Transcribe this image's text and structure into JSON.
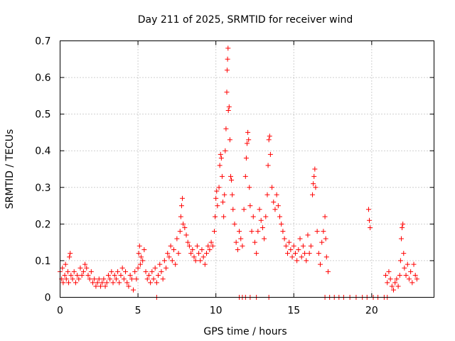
{
  "chart_data": {
    "type": "scatter",
    "title": "Day 211 of 2025, SRMTID for receiver wind",
    "xlabel": "GPS time / hours",
    "ylabel": "SRMTID / TECUs",
    "xlim": [
      0,
      24
    ],
    "ylim": [
      0,
      0.7
    ],
    "xticks": [
      "0",
      "5",
      "10",
      "15",
      "20"
    ],
    "yticks": [
      "0",
      "0.1",
      "0.2",
      "0.3",
      "0.4",
      "0.5",
      "0.6",
      "0.7"
    ],
    "grid": true,
    "marker": "+",
    "color": "#ff0000",
    "series": [
      {
        "name": "SRMTID",
        "points": [
          [
            0.0,
            0.07
          ],
          [
            0.1,
            0.05
          ],
          [
            0.15,
            0.08
          ],
          [
            0.2,
            0.04
          ],
          [
            0.3,
            0.06
          ],
          [
            0.35,
            0.09
          ],
          [
            0.4,
            0.05
          ],
          [
            0.5,
            0.07
          ],
          [
            0.55,
            0.04
          ],
          [
            0.6,
            0.11
          ],
          [
            0.65,
            0.12
          ],
          [
            0.7,
            0.06
          ],
          [
            0.8,
            0.05
          ],
          [
            0.9,
            0.07
          ],
          [
            1.0,
            0.04
          ],
          [
            1.1,
            0.06
          ],
          [
            1.2,
            0.05
          ],
          [
            1.3,
            0.08
          ],
          [
            1.4,
            0.06
          ],
          [
            1.5,
            0.07
          ],
          [
            1.6,
            0.09
          ],
          [
            1.7,
            0.08
          ],
          [
            1.8,
            0.06
          ],
          [
            1.9,
            0.05
          ],
          [
            2.0,
            0.07
          ],
          [
            2.1,
            0.04
          ],
          [
            2.2,
            0.05
          ],
          [
            2.3,
            0.03
          ],
          [
            2.4,
            0.04
          ],
          [
            2.5,
            0.05
          ],
          [
            2.6,
            0.03
          ],
          [
            2.7,
            0.04
          ],
          [
            2.8,
            0.05
          ],
          [
            2.9,
            0.03
          ],
          [
            3.0,
            0.04
          ],
          [
            3.1,
            0.06
          ],
          [
            3.2,
            0.05
          ],
          [
            3.3,
            0.07
          ],
          [
            3.4,
            0.04
          ],
          [
            3.5,
            0.06
          ],
          [
            3.6,
            0.05
          ],
          [
            3.7,
            0.07
          ],
          [
            3.8,
            0.04
          ],
          [
            3.9,
            0.06
          ],
          [
            4.0,
            0.08
          ],
          [
            4.1,
            0.05
          ],
          [
            4.2,
            0.07
          ],
          [
            4.3,
            0.04
          ],
          [
            4.4,
            0.03
          ],
          [
            4.5,
            0.06
          ],
          [
            4.6,
            0.05
          ],
          [
            4.7,
            0.02
          ],
          [
            4.8,
            0.07
          ],
          [
            4.9,
            0.05
          ],
          [
            5.0,
            0.08
          ],
          [
            5.05,
            0.12
          ],
          [
            5.1,
            0.14
          ],
          [
            5.15,
            0.09
          ],
          [
            5.2,
            0.11
          ],
          [
            5.3,
            0.1
          ],
          [
            5.4,
            0.13
          ],
          [
            5.5,
            0.07
          ],
          [
            5.6,
            0.05
          ],
          [
            5.7,
            0.06
          ],
          [
            5.8,
            0.04
          ],
          [
            5.9,
            0.07
          ],
          [
            6.0,
            0.05
          ],
          [
            6.1,
            0.08
          ],
          [
            6.2,
            0.04
          ],
          [
            6.3,
            0.06
          ],
          [
            6.4,
            0.09
          ],
          [
            6.5,
            0.07
          ],
          [
            6.6,
            0.05
          ],
          [
            6.7,
            0.1
          ],
          [
            6.8,
            0.08
          ],
          [
            6.9,
            0.12
          ],
          [
            7.0,
            0.11
          ],
          [
            7.1,
            0.14
          ],
          [
            7.2,
            0.1
          ],
          [
            7.3,
            0.13
          ],
          [
            7.4,
            0.09
          ],
          [
            7.5,
            0.16
          ],
          [
            7.6,
            0.12
          ],
          [
            7.7,
            0.18
          ],
          [
            7.75,
            0.22
          ],
          [
            7.8,
            0.25
          ],
          [
            7.85,
            0.27
          ],
          [
            7.9,
            0.2
          ],
          [
            8.0,
            0.19
          ],
          [
            8.1,
            0.17
          ],
          [
            8.2,
            0.15
          ],
          [
            8.3,
            0.14
          ],
          [
            8.4,
            0.12
          ],
          [
            8.5,
            0.13
          ],
          [
            8.6,
            0.11
          ],
          [
            8.7,
            0.1
          ],
          [
            8.8,
            0.14
          ],
          [
            8.9,
            0.12
          ],
          [
            9.0,
            0.1
          ],
          [
            9.1,
            0.13
          ],
          [
            9.2,
            0.11
          ],
          [
            9.3,
            0.09
          ],
          [
            9.4,
            0.12
          ],
          [
            9.5,
            0.14
          ],
          [
            9.6,
            0.13
          ],
          [
            9.7,
            0.15
          ],
          [
            9.8,
            0.14
          ],
          [
            9.9,
            0.18
          ],
          [
            9.95,
            0.22
          ],
          [
            10.0,
            0.27
          ],
          [
            10.05,
            0.29
          ],
          [
            10.1,
            0.25
          ],
          [
            10.2,
            0.3
          ],
          [
            10.25,
            0.36
          ],
          [
            10.3,
            0.39
          ],
          [
            10.35,
            0.38
          ],
          [
            10.4,
            0.33
          ],
          [
            10.45,
            0.26
          ],
          [
            10.5,
            0.22
          ],
          [
            10.55,
            0.28
          ],
          [
            10.6,
            0.4
          ],
          [
            10.65,
            0.46
          ],
          [
            10.7,
            0.56
          ],
          [
            10.72,
            0.62
          ],
          [
            10.75,
            0.65
          ],
          [
            10.78,
            0.68
          ],
          [
            10.8,
            0.51
          ],
          [
            10.85,
            0.52
          ],
          [
            10.9,
            0.43
          ],
          [
            10.95,
            0.33
          ],
          [
            11.0,
            0.32
          ],
          [
            11.05,
            0.28
          ],
          [
            11.1,
            0.24
          ],
          [
            11.2,
            0.2
          ],
          [
            11.3,
            0.15
          ],
          [
            11.4,
            0.13
          ],
          [
            11.5,
            0.18
          ],
          [
            11.6,
            0.16
          ],
          [
            11.7,
            0.14
          ],
          [
            11.8,
            0.24
          ],
          [
            11.9,
            0.33
          ],
          [
            11.95,
            0.38
          ],
          [
            12.0,
            0.42
          ],
          [
            12.05,
            0.45
          ],
          [
            12.1,
            0.43
          ],
          [
            12.15,
            0.3
          ],
          [
            12.2,
            0.25
          ],
          [
            12.3,
            0.18
          ],
          [
            12.4,
            0.22
          ],
          [
            12.5,
            0.15
          ],
          [
            12.6,
            0.12
          ],
          [
            12.7,
            0.18
          ],
          [
            12.8,
            0.24
          ],
          [
            12.9,
            0.21
          ],
          [
            13.0,
            0.19
          ],
          [
            13.1,
            0.16
          ],
          [
            13.2,
            0.22
          ],
          [
            13.3,
            0.28
          ],
          [
            13.35,
            0.36
          ],
          [
            13.4,
            0.43
          ],
          [
            13.45,
            0.44
          ],
          [
            13.5,
            0.39
          ],
          [
            13.6,
            0.3
          ],
          [
            13.7,
            0.26
          ],
          [
            13.8,
            0.24
          ],
          [
            13.9,
            0.28
          ],
          [
            14.0,
            0.25
          ],
          [
            14.1,
            0.22
          ],
          [
            14.2,
            0.2
          ],
          [
            14.3,
            0.18
          ],
          [
            14.4,
            0.16
          ],
          [
            14.5,
            0.14
          ],
          [
            14.6,
            0.12
          ],
          [
            14.7,
            0.15
          ],
          [
            14.8,
            0.13
          ],
          [
            14.9,
            0.11
          ],
          [
            15.0,
            0.14
          ],
          [
            15.1,
            0.12
          ],
          [
            15.2,
            0.1
          ],
          [
            15.3,
            0.13
          ],
          [
            15.4,
            0.16
          ],
          [
            15.5,
            0.11
          ],
          [
            15.6,
            0.14
          ],
          [
            15.7,
            0.12
          ],
          [
            15.8,
            0.1
          ],
          [
            15.9,
            0.17
          ],
          [
            16.0,
            0.12
          ],
          [
            16.1,
            0.14
          ],
          [
            16.2,
            0.28
          ],
          [
            16.25,
            0.31
          ],
          [
            16.3,
            0.33
          ],
          [
            16.35,
            0.35
          ],
          [
            16.4,
            0.3
          ],
          [
            16.5,
            0.18
          ],
          [
            16.6,
            0.12
          ],
          [
            16.7,
            0.09
          ],
          [
            16.8,
            0.15
          ],
          [
            16.9,
            0.18
          ],
          [
            17.0,
            0.22
          ],
          [
            17.05,
            0.16
          ],
          [
            17.1,
            0.11
          ],
          [
            17.2,
            0.07
          ],
          [
            19.8,
            0.24
          ],
          [
            19.85,
            0.21
          ],
          [
            19.9,
            0.19
          ],
          [
            20.9,
            0.06
          ],
          [
            21.0,
            0.04
          ],
          [
            21.1,
            0.07
          ],
          [
            21.2,
            0.05
          ],
          [
            21.3,
            0.03
          ],
          [
            21.4,
            0.02
          ],
          [
            21.5,
            0.04
          ],
          [
            21.6,
            0.05
          ],
          [
            21.7,
            0.03
          ],
          [
            21.8,
            0.06
          ],
          [
            21.85,
            0.1
          ],
          [
            21.9,
            0.16
          ],
          [
            21.95,
            0.19
          ],
          [
            22.0,
            0.2
          ],
          [
            22.05,
            0.12
          ],
          [
            22.1,
            0.08
          ],
          [
            22.2,
            0.06
          ],
          [
            22.3,
            0.09
          ],
          [
            22.4,
            0.05
          ],
          [
            22.5,
            0.07
          ],
          [
            22.6,
            0.04
          ],
          [
            22.7,
            0.09
          ],
          [
            22.8,
            0.06
          ],
          [
            22.9,
            0.05
          ],
          [
            6.2,
            0.0
          ],
          [
            11.5,
            0.0
          ],
          [
            11.7,
            0.0
          ],
          [
            11.9,
            0.0
          ],
          [
            12.2,
            0.0
          ],
          [
            12.6,
            0.0
          ],
          [
            13.4,
            0.0
          ],
          [
            17.0,
            0.0
          ],
          [
            17.3,
            0.0
          ],
          [
            17.6,
            0.0
          ],
          [
            17.9,
            0.0
          ],
          [
            18.2,
            0.0
          ],
          [
            18.6,
            0.0
          ],
          [
            19.0,
            0.0
          ],
          [
            19.4,
            0.0
          ],
          [
            19.7,
            0.0
          ],
          [
            20.1,
            0.0
          ],
          [
            20.4,
            0.0
          ],
          [
            20.8,
            0.0
          ],
          [
            21.0,
            0.0
          ]
        ]
      }
    ]
  }
}
